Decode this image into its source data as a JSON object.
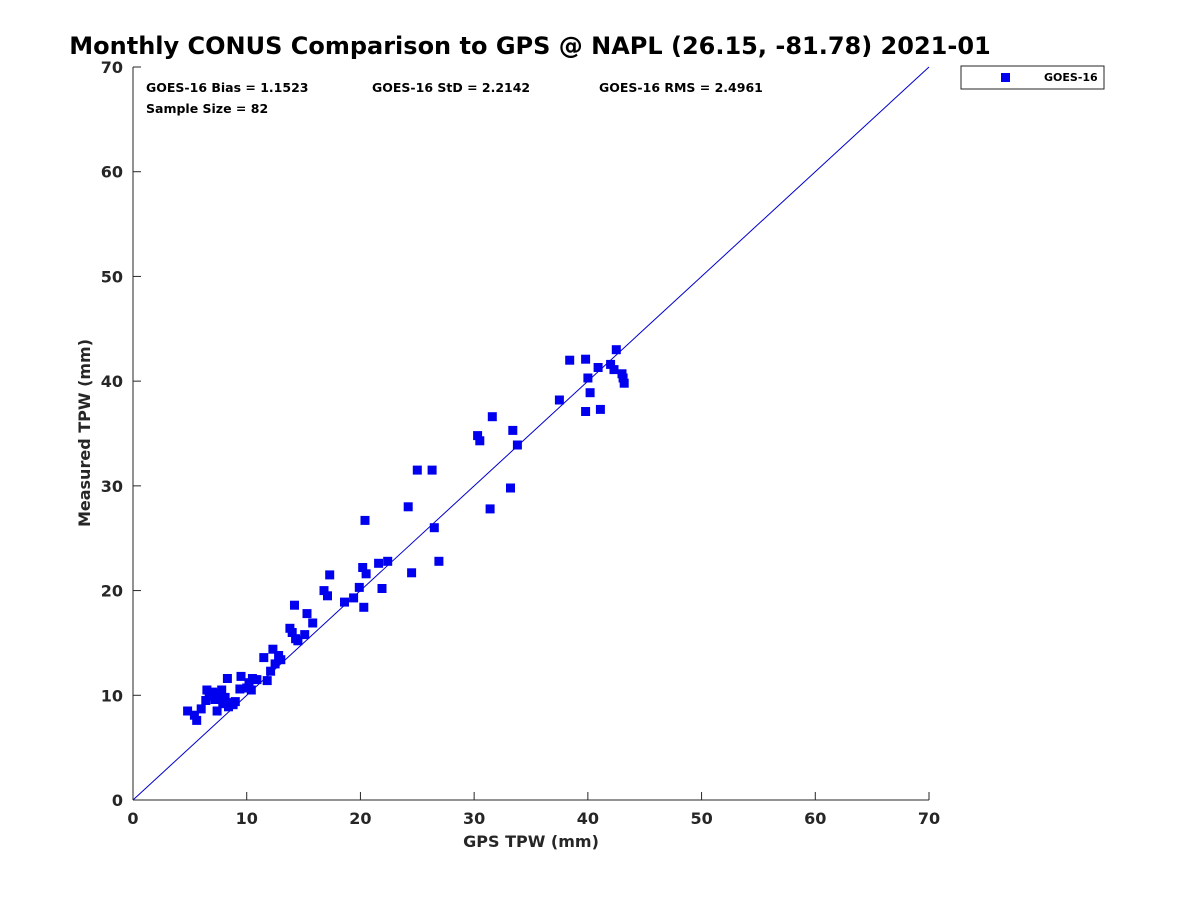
{
  "chart_data": {
    "type": "scatter",
    "title": "Monthly CONUS Comparison to GPS @ NAPL (26.15, -81.78) 2021-01",
    "xlabel": "GPS TPW (mm)",
    "ylabel": "Measured TPW (mm)",
    "xlim": [
      0,
      70
    ],
    "ylim": [
      0,
      70
    ],
    "xticks": [
      0,
      10,
      20,
      30,
      40,
      50,
      60,
      70
    ],
    "yticks": [
      0,
      10,
      20,
      30,
      40,
      50,
      60,
      70
    ],
    "grid": false,
    "legend_position": "outside-top-right",
    "colors": {
      "series": "#0000ee",
      "reference_line": "#0000cc",
      "axis": "#262626"
    },
    "stats": {
      "bias": "GOES-16 Bias = 1.1523",
      "std": "GOES-16 StD = 2.2142",
      "rms": "GOES-16 RMS = 2.4961",
      "sample_size": "Sample Size = 82"
    },
    "reference_line": {
      "x": [
        0,
        70
      ],
      "y": [
        0,
        70
      ]
    },
    "series": [
      {
        "name": "GOES-16",
        "marker": "square",
        "points": [
          [
            4.8,
            8.5
          ],
          [
            5.4,
            8.1
          ],
          [
            5.6,
            7.6
          ],
          [
            6.0,
            8.7
          ],
          [
            6.4,
            9.5
          ],
          [
            6.5,
            10.5
          ],
          [
            7.0,
            10.3
          ],
          [
            7.2,
            9.6
          ],
          [
            7.4,
            8.5
          ],
          [
            7.5,
            9.9
          ],
          [
            7.8,
            10.5
          ],
          [
            7.9,
            9.2
          ],
          [
            8.1,
            9.8
          ],
          [
            8.3,
            11.6
          ],
          [
            8.4,
            8.9
          ],
          [
            8.6,
            9.3
          ],
          [
            8.8,
            9.1
          ],
          [
            9.0,
            9.4
          ],
          [
            9.4,
            10.6
          ],
          [
            9.5,
            11.8
          ],
          [
            10.0,
            10.7
          ],
          [
            10.2,
            11.2
          ],
          [
            10.4,
            10.5
          ],
          [
            10.5,
            11.6
          ],
          [
            10.9,
            11.5
          ],
          [
            11.5,
            13.6
          ],
          [
            11.8,
            11.4
          ],
          [
            12.1,
            12.3
          ],
          [
            12.3,
            14.4
          ],
          [
            12.5,
            13.0
          ],
          [
            12.8,
            13.8
          ],
          [
            13.0,
            13.4
          ],
          [
            13.8,
            16.4
          ],
          [
            14.0,
            16.0
          ],
          [
            14.2,
            18.6
          ],
          [
            14.3,
            15.4
          ],
          [
            14.5,
            15.2
          ],
          [
            15.1,
            15.8
          ],
          [
            15.3,
            17.8
          ],
          [
            15.8,
            16.9
          ],
          [
            16.8,
            20.0
          ],
          [
            17.1,
            19.5
          ],
          [
            17.3,
            21.5
          ],
          [
            18.6,
            18.9
          ],
          [
            19.4,
            19.3
          ],
          [
            19.9,
            20.3
          ],
          [
            20.2,
            22.2
          ],
          [
            20.3,
            18.4
          ],
          [
            20.4,
            26.7
          ],
          [
            20.5,
            21.6
          ],
          [
            21.6,
            22.6
          ],
          [
            21.9,
            20.2
          ],
          [
            22.4,
            22.8
          ],
          [
            24.2,
            28.0
          ],
          [
            24.5,
            21.7
          ],
          [
            25.0,
            31.5
          ],
          [
            26.3,
            31.5
          ],
          [
            26.5,
            26.0
          ],
          [
            26.9,
            22.8
          ],
          [
            30.3,
            34.8
          ],
          [
            30.5,
            34.3
          ],
          [
            31.4,
            27.8
          ],
          [
            31.6,
            36.6
          ],
          [
            33.2,
            29.8
          ],
          [
            33.4,
            35.3
          ],
          [
            33.8,
            33.9
          ],
          [
            37.5,
            38.2
          ],
          [
            38.4,
            42.0
          ],
          [
            39.8,
            42.1
          ],
          [
            39.8,
            37.1
          ],
          [
            40.0,
            40.3
          ],
          [
            40.2,
            38.9
          ],
          [
            40.9,
            41.3
          ],
          [
            41.1,
            37.3
          ],
          [
            42.0,
            41.6
          ],
          [
            42.3,
            41.1
          ],
          [
            42.5,
            43.0
          ],
          [
            43.1,
            40.3
          ],
          [
            43.2,
            39.8
          ],
          [
            43.0,
            40.7
          ],
          [
            6.7,
            9.9
          ],
          [
            7.7,
            10.2
          ]
        ]
      }
    ]
  }
}
